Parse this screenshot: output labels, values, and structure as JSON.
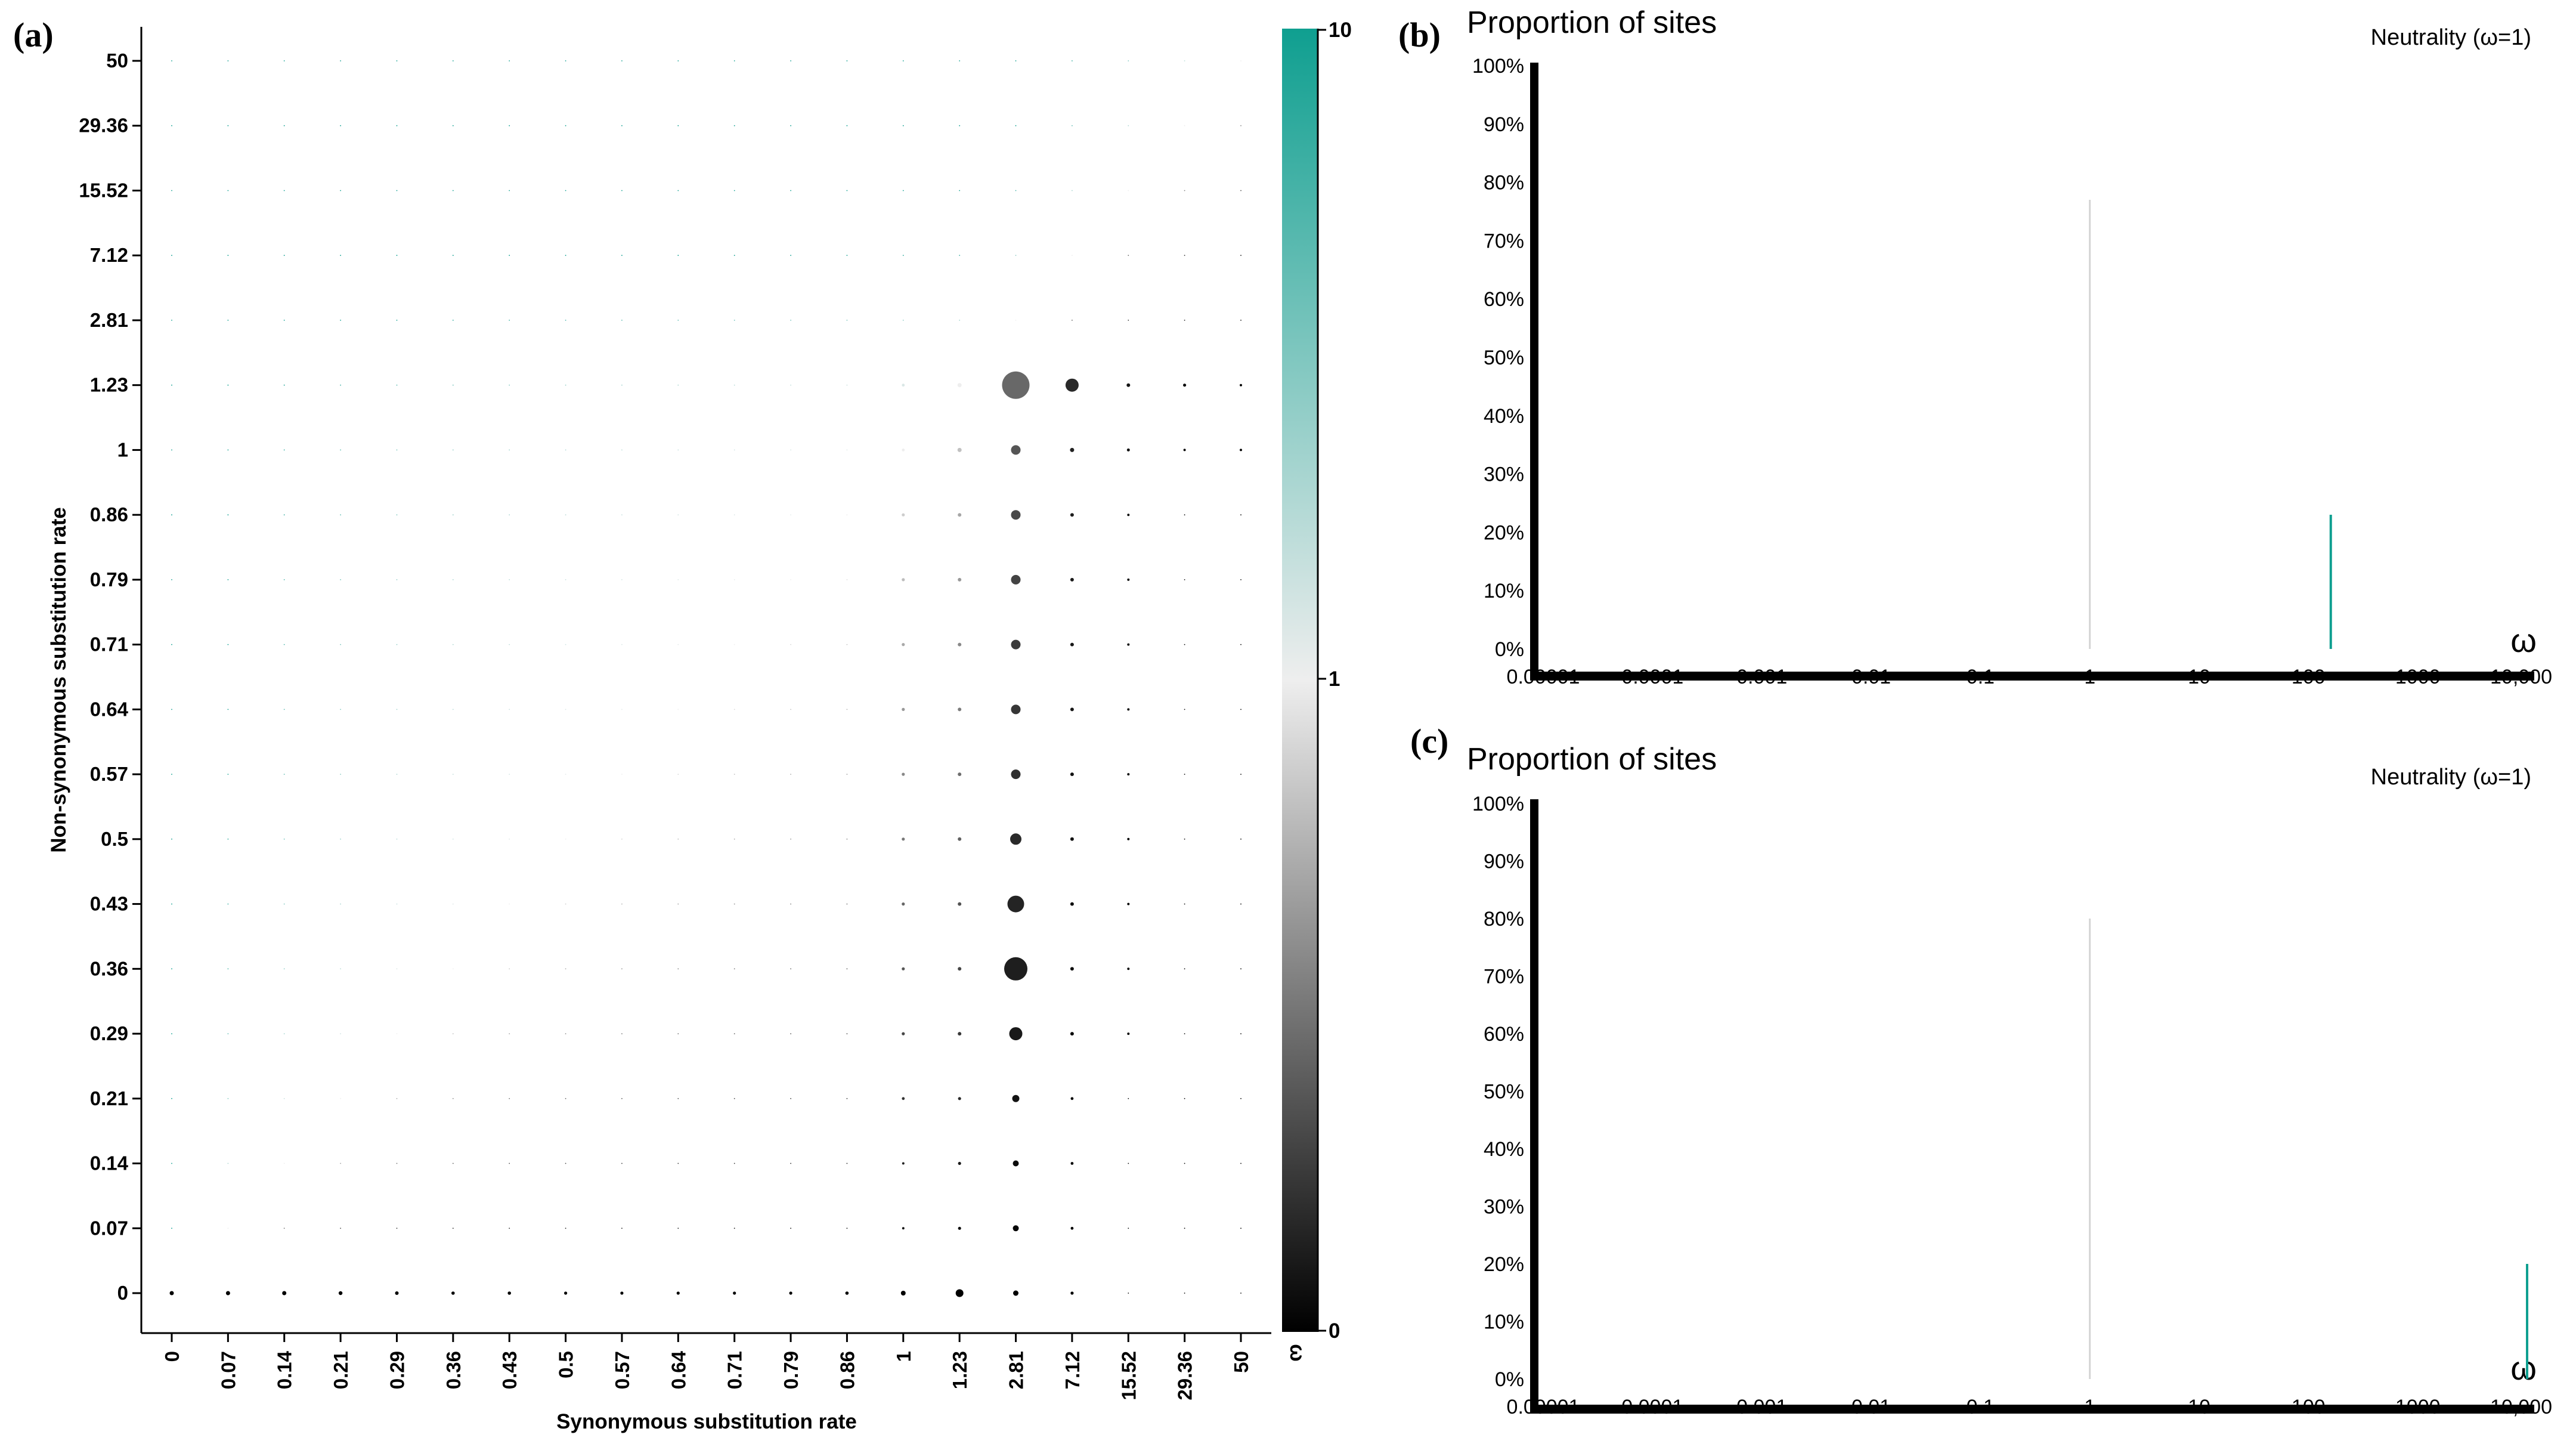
{
  "colors": {
    "omega_high": "#0f9f90",
    "omega_mid": "#eeeeee",
    "omega_low": "#000000",
    "neutral_line": "#d4d4d4",
    "axis": "#000000"
  },
  "chart_data": [
    {
      "panel": "(a)",
      "type": "scatter",
      "subtype": "bubble-grid",
      "xlabel": "Synonymous substitution rate",
      "ylabel": "Non-synonymous substitution rate",
      "x_ticks": [
        "0",
        "0.07",
        "0.14",
        "0.21",
        "0.29",
        "0.36",
        "0.43",
        "0.5",
        "0.57",
        "0.64",
        "0.71",
        "0.79",
        "0.86",
        "1",
        "1.23",
        "2.81",
        "7.12",
        "15.52",
        "29.36",
        "50"
      ],
      "y_ticks": [
        "0",
        "0.07",
        "0.14",
        "0.21",
        "0.29",
        "0.36",
        "0.43",
        "0.5",
        "0.57",
        "0.64",
        "0.71",
        "0.79",
        "0.86",
        "1",
        "1.23",
        "2.81",
        "7.12",
        "15.52",
        "29.36",
        "50"
      ],
      "color_scale": {
        "label": "ω",
        "ticks": [
          "0",
          "1",
          "10"
        ],
        "domain": [
          0,
          10
        ],
        "mid": 1
      },
      "default_dot_size": 0.9,
      "sized_points": [
        {
          "x": "0",
          "y": "0",
          "size": 3.5
        },
        {
          "x": "0.07",
          "y": "0",
          "size": 3.5
        },
        {
          "x": "0.14",
          "y": "0",
          "size": 3.5
        },
        {
          "x": "0.21",
          "y": "0",
          "size": 3.2
        },
        {
          "x": "0.29",
          "y": "0",
          "size": 3
        },
        {
          "x": "0.36",
          "y": "0",
          "size": 2.8
        },
        {
          "x": "0.43",
          "y": "0",
          "size": 2.8
        },
        {
          "x": "0.5",
          "y": "0",
          "size": 2.6
        },
        {
          "x": "0.57",
          "y": "0",
          "size": 2.6
        },
        {
          "x": "0.64",
          "y": "0",
          "size": 2.6
        },
        {
          "x": "0.71",
          "y": "0",
          "size": 2.6
        },
        {
          "x": "0.79",
          "y": "0",
          "size": 2.6
        },
        {
          "x": "0.86",
          "y": "0",
          "size": 2.8
        },
        {
          "x": "1",
          "y": "0",
          "size": 4
        },
        {
          "x": "1.23",
          "y": "0",
          "size": 6.5
        },
        {
          "x": "2.81",
          "y": "0",
          "size": 4.5
        },
        {
          "x": "7.12",
          "y": "0",
          "size": 2.6
        },
        {
          "x": "1",
          "y": "0.07",
          "size": 2
        },
        {
          "x": "1.23",
          "y": "0.07",
          "size": 2.6
        },
        {
          "x": "2.81",
          "y": "0.07",
          "size": 5
        },
        {
          "x": "7.12",
          "y": "0.07",
          "size": 2.4
        },
        {
          "x": "1",
          "y": "0.14",
          "size": 2
        },
        {
          "x": "1.23",
          "y": "0.14",
          "size": 2.6
        },
        {
          "x": "2.81",
          "y": "0.14",
          "size": 5
        },
        {
          "x": "7.12",
          "y": "0.14",
          "size": 2.4
        },
        {
          "x": "1",
          "y": "0.21",
          "size": 2.4
        },
        {
          "x": "1.23",
          "y": "0.21",
          "size": 2.6
        },
        {
          "x": "2.81",
          "y": "0.21",
          "size": 6
        },
        {
          "x": "7.12",
          "y": "0.21",
          "size": 2.4
        },
        {
          "x": "1",
          "y": "0.29",
          "size": 2.6
        },
        {
          "x": "1.23",
          "y": "0.29",
          "size": 3
        },
        {
          "x": "2.81",
          "y": "0.29",
          "size": 11
        },
        {
          "x": "7.12",
          "y": "0.29",
          "size": 3
        },
        {
          "x": "15.52",
          "y": "0.29",
          "size": 2
        },
        {
          "x": "1",
          "y": "0.36",
          "size": 2.6
        },
        {
          "x": "1.23",
          "y": "0.36",
          "size": 3
        },
        {
          "x": "2.81",
          "y": "0.36",
          "size": 19.5
        },
        {
          "x": "7.12",
          "y": "0.36",
          "size": 3
        },
        {
          "x": "15.52",
          "y": "0.36",
          "size": 2
        },
        {
          "x": "1",
          "y": "0.43",
          "size": 2.6
        },
        {
          "x": "1.23",
          "y": "0.43",
          "size": 3
        },
        {
          "x": "2.81",
          "y": "0.43",
          "size": 14
        },
        {
          "x": "7.12",
          "y": "0.43",
          "size": 3
        },
        {
          "x": "15.52",
          "y": "0.43",
          "size": 2
        },
        {
          "x": "1",
          "y": "0.5",
          "size": 2.6
        },
        {
          "x": "1.23",
          "y": "0.5",
          "size": 3
        },
        {
          "x": "2.81",
          "y": "0.5",
          "size": 9.5
        },
        {
          "x": "7.12",
          "y": "0.5",
          "size": 3
        },
        {
          "x": "15.52",
          "y": "0.5",
          "size": 2
        },
        {
          "x": "1",
          "y": "0.57",
          "size": 2.6
        },
        {
          "x": "1.23",
          "y": "0.57",
          "size": 3
        },
        {
          "x": "2.81",
          "y": "0.57",
          "size": 8
        },
        {
          "x": "7.12",
          "y": "0.57",
          "size": 3
        },
        {
          "x": "15.52",
          "y": "0.57",
          "size": 2
        },
        {
          "x": "1",
          "y": "0.64",
          "size": 2.6
        },
        {
          "x": "1.23",
          "y": "0.64",
          "size": 3
        },
        {
          "x": "2.81",
          "y": "0.64",
          "size": 8
        },
        {
          "x": "7.12",
          "y": "0.64",
          "size": 3
        },
        {
          "x": "15.52",
          "y": "0.64",
          "size": 2
        },
        {
          "x": "1",
          "y": "0.71",
          "size": 2.6
        },
        {
          "x": "1.23",
          "y": "0.71",
          "size": 3
        },
        {
          "x": "2.81",
          "y": "0.71",
          "size": 8
        },
        {
          "x": "7.12",
          "y": "0.71",
          "size": 3
        },
        {
          "x": "15.52",
          "y": "0.71",
          "size": 2
        },
        {
          "x": "1",
          "y": "0.79",
          "size": 2.6
        },
        {
          "x": "1.23",
          "y": "0.79",
          "size": 3
        },
        {
          "x": "2.81",
          "y": "0.79",
          "size": 8
        },
        {
          "x": "7.12",
          "y": "0.79",
          "size": 3
        },
        {
          "x": "15.52",
          "y": "0.79",
          "size": 2
        },
        {
          "x": "1",
          "y": "0.86",
          "size": 2.6
        },
        {
          "x": "1.23",
          "y": "0.86",
          "size": 3
        },
        {
          "x": "2.81",
          "y": "0.86",
          "size": 8
        },
        {
          "x": "7.12",
          "y": "0.86",
          "size": 3
        },
        {
          "x": "15.52",
          "y": "0.86",
          "size": 2
        },
        {
          "x": "1",
          "y": "1",
          "size": 2.4
        },
        {
          "x": "1.23",
          "y": "1",
          "size": 3.5
        },
        {
          "x": "2.81",
          "y": "1",
          "size": 8
        },
        {
          "x": "7.12",
          "y": "1",
          "size": 3.5
        },
        {
          "x": "15.52",
          "y": "1",
          "size": 2.5
        },
        {
          "x": "29.36",
          "y": "1",
          "size": 2
        },
        {
          "x": "50",
          "y": "1",
          "size": 2
        },
        {
          "x": "1",
          "y": "1.23",
          "size": 2.4
        },
        {
          "x": "1.23",
          "y": "1.23",
          "size": 3.5
        },
        {
          "x": "2.81",
          "y": "1.23",
          "size": 23
        },
        {
          "x": "7.12",
          "y": "1.23",
          "size": 11
        },
        {
          "x": "15.52",
          "y": "1.23",
          "size": 3
        },
        {
          "x": "29.36",
          "y": "1.23",
          "size": 2.6
        },
        {
          "x": "50",
          "y": "1.23",
          "size": 2
        }
      ]
    },
    {
      "panel": "(b)",
      "type": "bar",
      "title": "Proportion of sites",
      "annotation": "Neutrality (ω=1)",
      "xlabel": "ω",
      "x_scale": "log",
      "x_ticks": [
        "0.00001",
        "0.0001",
        "0.001",
        "0.01",
        "0.1",
        "1",
        "10",
        "100",
        "1000",
        "10,000"
      ],
      "y_ticks": [
        "0%",
        "10%",
        "20%",
        "30%",
        "40%",
        "50%",
        "60%",
        "70%",
        "80%",
        "90%",
        "100%"
      ],
      "ylim": [
        0,
        100
      ],
      "neutral_line": {
        "x": 1,
        "height": 77
      },
      "bars": [
        {
          "x": 160,
          "value": 23
        }
      ]
    },
    {
      "panel": "(c)",
      "type": "bar",
      "title": "Proportion of sites",
      "annotation": "Neutrality (ω=1)",
      "xlabel": "ω",
      "x_scale": "log",
      "x_ticks": [
        "0.00001",
        "0.0001",
        "0.001",
        "0.01",
        "0.1",
        "1",
        "10",
        "100",
        "1000",
        "10,000"
      ],
      "y_ticks": [
        "0%",
        "10%",
        "20%",
        "30%",
        "40%",
        "50%",
        "60%",
        "70%",
        "80%",
        "90%",
        "100%"
      ],
      "ylim": [
        0,
        100
      ],
      "neutral_line": {
        "x": 1,
        "height": 80
      },
      "bars": [
        {
          "x": 10000,
          "value": 20
        }
      ]
    }
  ]
}
